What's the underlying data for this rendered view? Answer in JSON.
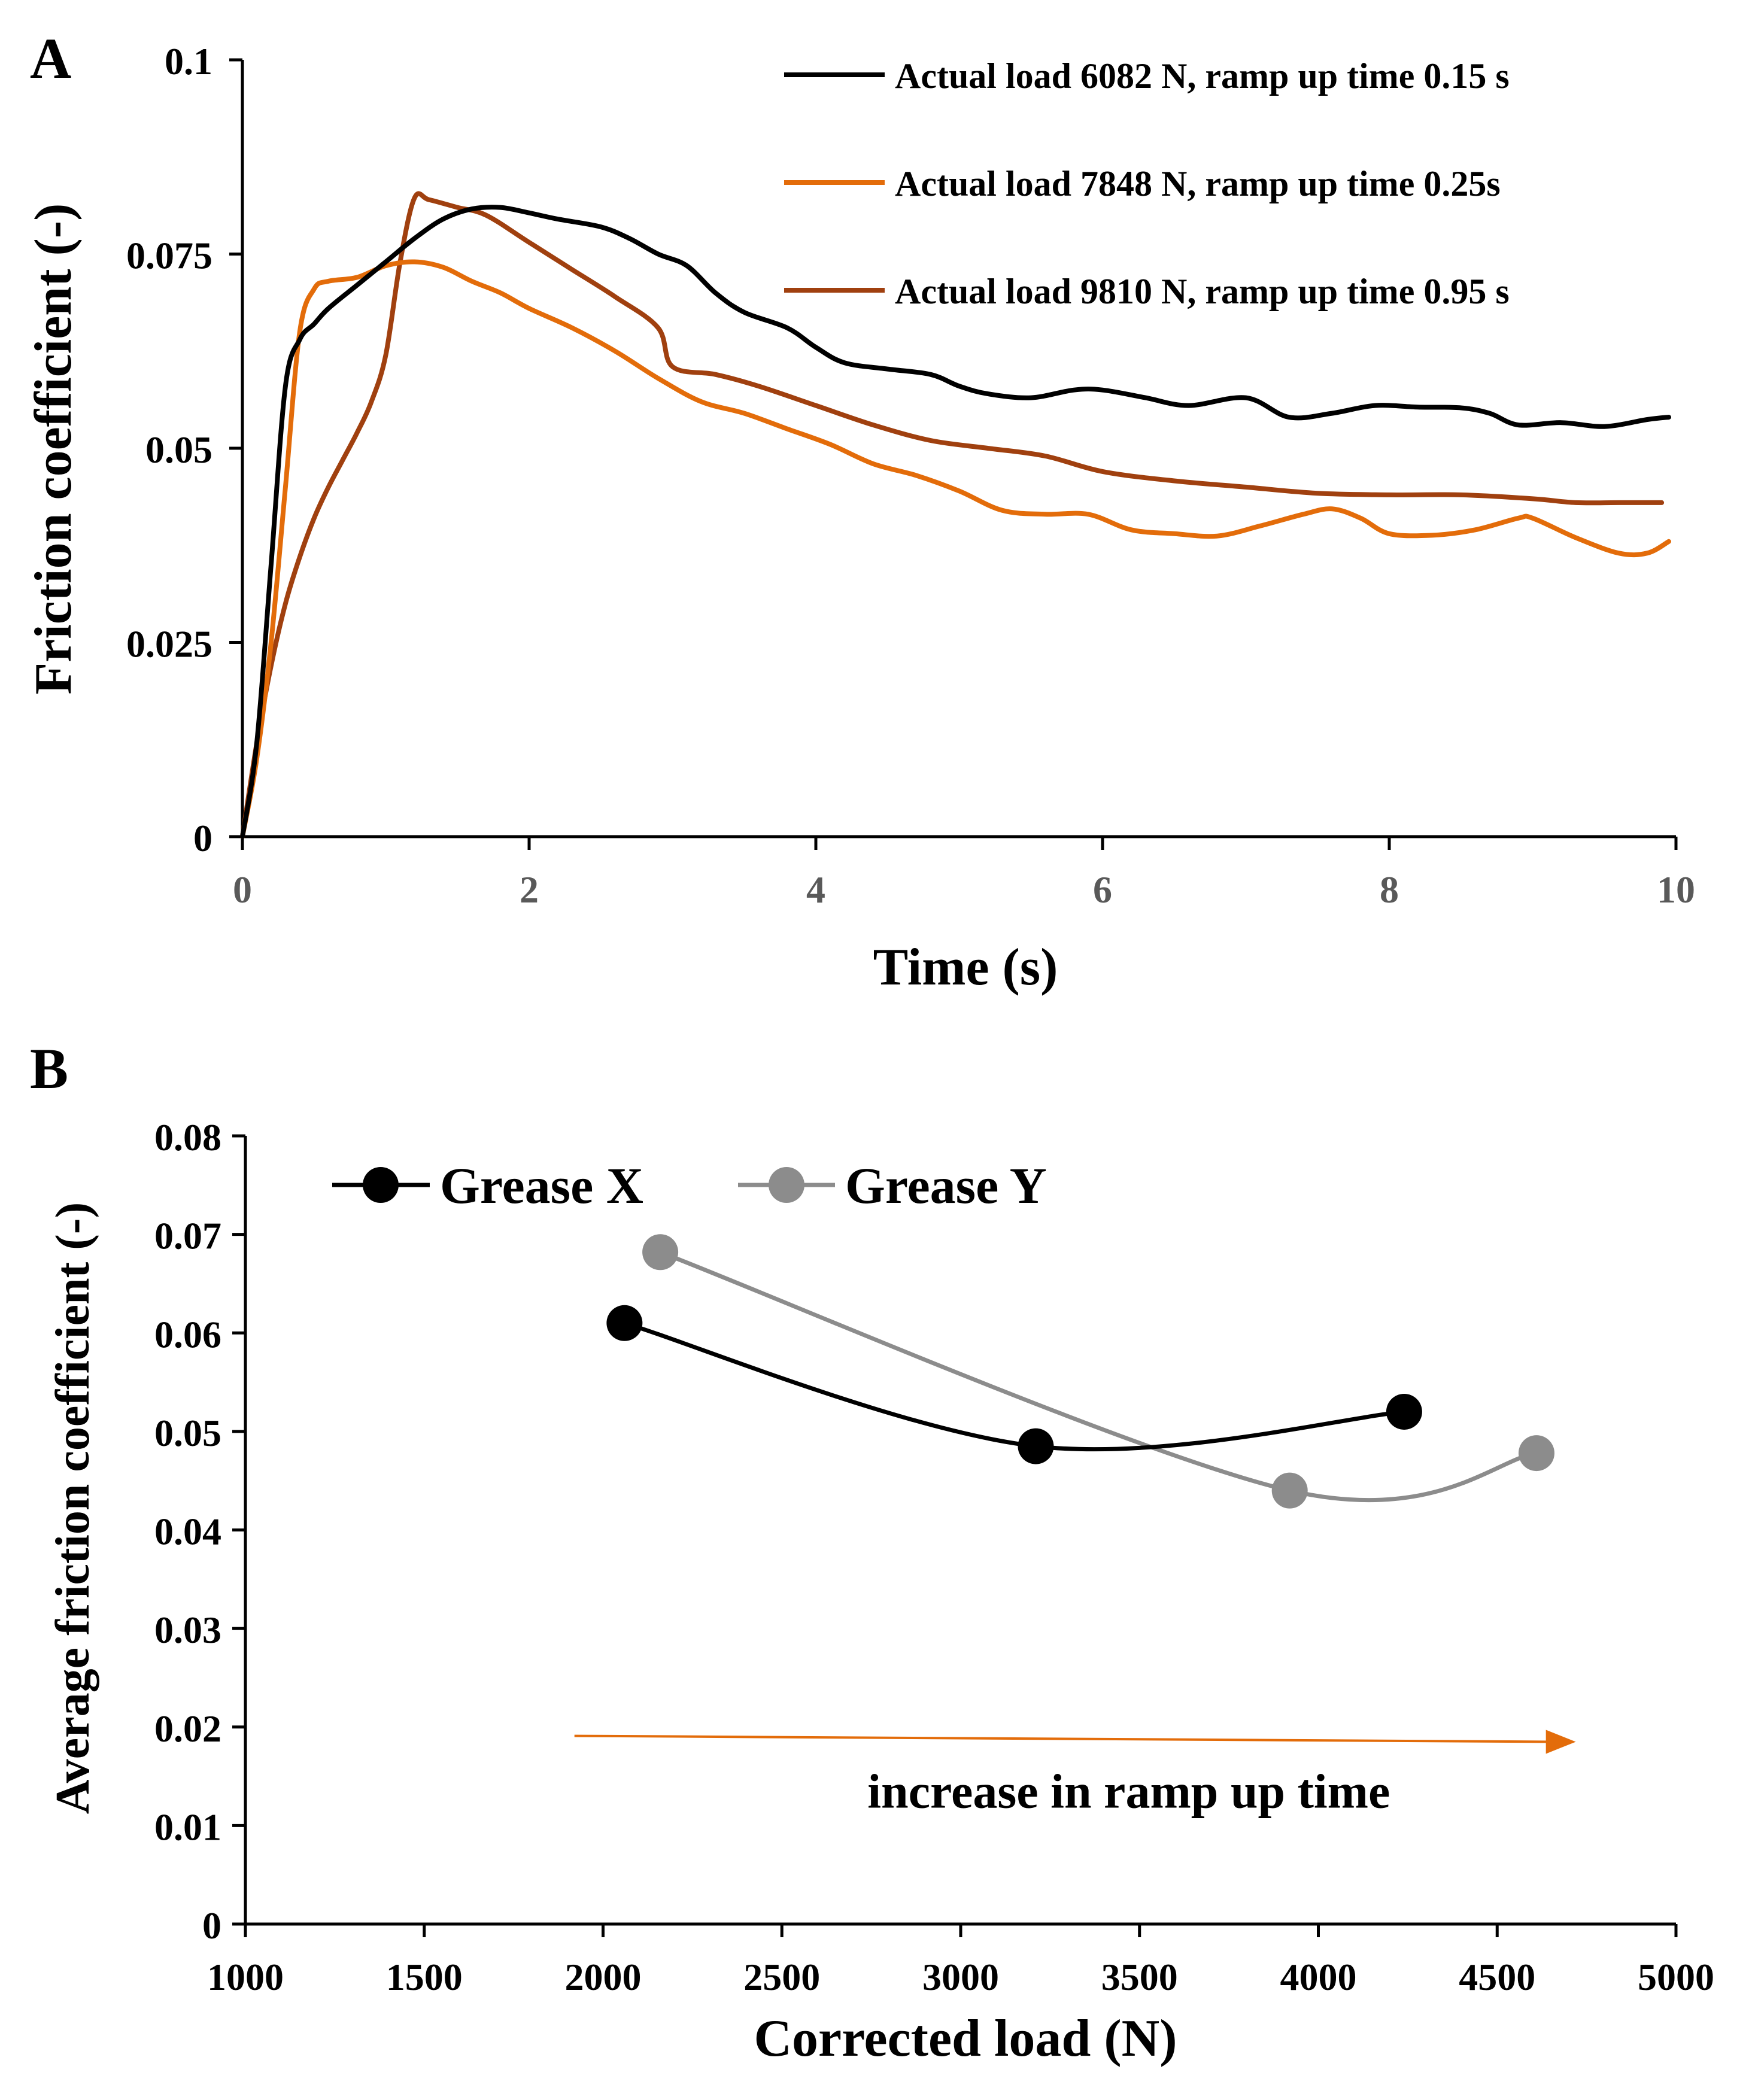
{
  "colors": {
    "axis": "#000000",
    "black_series": "#000000",
    "orange_series": "#E36C0A",
    "brown_series": "#A0400F",
    "grease_x": "#000000",
    "grease_y": "#8C8C8C",
    "arrow": "#E36C0A"
  },
  "chart_data": [
    {
      "panel_label": "A",
      "type": "line",
      "xlabel": "Time (s)",
      "ylabel": "Friction coefficient (-)",
      "xlim": [
        0,
        10
      ],
      "ylim": [
        0,
        0.1
      ],
      "xticks": [
        0,
        2,
        4,
        6,
        8,
        10
      ],
      "xtick_labels": [
        "0",
        "2",
        "4",
        "6",
        "8",
        "10"
      ],
      "yticks": [
        0,
        0.025,
        0.05,
        0.075,
        0.1
      ],
      "ytick_labels": [
        "0",
        "0.025",
        "0.05",
        "0.075",
        "0.1"
      ],
      "legend_position": "top-right",
      "series": [
        {
          "name": "Actual load 6082 N, ramp up time 0.15 s",
          "color_key": "black_series",
          "points": [
            [
              0,
              0
            ],
            [
              0.1,
              0.012
            ],
            [
              0.2,
              0.035
            ],
            [
              0.3,
              0.058
            ],
            [
              0.4,
              0.064
            ],
            [
              0.5,
              0.066
            ],
            [
              0.6,
              0.068
            ],
            [
              0.8,
              0.071
            ],
            [
              1.0,
              0.074
            ],
            [
              1.2,
              0.077
            ],
            [
              1.4,
              0.0795
            ],
            [
              1.6,
              0.0808
            ],
            [
              1.8,
              0.081
            ],
            [
              2.0,
              0.0803
            ],
            [
              2.2,
              0.0795
            ],
            [
              2.5,
              0.0785
            ],
            [
              2.7,
              0.077
            ],
            [
              2.9,
              0.075
            ],
            [
              3.1,
              0.0735
            ],
            [
              3.3,
              0.07
            ],
            [
              3.5,
              0.0675
            ],
            [
              3.8,
              0.0655
            ],
            [
              4.0,
              0.063
            ],
            [
              4.2,
              0.061
            ],
            [
              4.5,
              0.0602
            ],
            [
              4.8,
              0.0595
            ],
            [
              5.0,
              0.058
            ],
            [
              5.2,
              0.057
            ],
            [
              5.5,
              0.0565
            ],
            [
              5.8,
              0.0575
            ],
            [
              6.0,
              0.0575
            ],
            [
              6.3,
              0.0565
            ],
            [
              6.6,
              0.0555
            ],
            [
              7.0,
              0.0565
            ],
            [
              7.3,
              0.054
            ],
            [
              7.6,
              0.0545
            ],
            [
              7.9,
              0.0555
            ],
            [
              8.2,
              0.0553
            ],
            [
              8.5,
              0.0552
            ],
            [
              8.7,
              0.0545
            ],
            [
              8.9,
              0.053
            ],
            [
              9.2,
              0.0533
            ],
            [
              9.5,
              0.0528
            ],
            [
              9.8,
              0.0537
            ],
            [
              9.95,
              0.054
            ]
          ]
        },
        {
          "name": "Actual load 7848 N, ramp up time 0.25s",
          "color_key": "orange_series",
          "points": [
            [
              0,
              0
            ],
            [
              0.1,
              0.01
            ],
            [
              0.2,
              0.025
            ],
            [
              0.3,
              0.045
            ],
            [
              0.4,
              0.065
            ],
            [
              0.5,
              0.0705
            ],
            [
              0.6,
              0.0715
            ],
            [
              0.8,
              0.072
            ],
            [
              1.0,
              0.0735
            ],
            [
              1.2,
              0.074
            ],
            [
              1.4,
              0.0733
            ],
            [
              1.6,
              0.0715
            ],
            [
              1.8,
              0.07
            ],
            [
              2.0,
              0.068
            ],
            [
              2.3,
              0.0655
            ],
            [
              2.6,
              0.0625
            ],
            [
              2.9,
              0.059
            ],
            [
              3.2,
              0.056
            ],
            [
              3.5,
              0.0545
            ],
            [
              3.8,
              0.0525
            ],
            [
              4.1,
              0.0505
            ],
            [
              4.4,
              0.048
            ],
            [
              4.7,
              0.0465
            ],
            [
              5.0,
              0.0445
            ],
            [
              5.3,
              0.042
            ],
            [
              5.6,
              0.0415
            ],
            [
              5.9,
              0.0415
            ],
            [
              6.2,
              0.0395
            ],
            [
              6.5,
              0.039
            ],
            [
              6.8,
              0.0387
            ],
            [
              7.1,
              0.04
            ],
            [
              7.4,
              0.0415
            ],
            [
              7.6,
              0.0422
            ],
            [
              7.8,
              0.041
            ],
            [
              8.0,
              0.039
            ],
            [
              8.3,
              0.0388
            ],
            [
              8.6,
              0.0395
            ],
            [
              8.9,
              0.041
            ],
            [
              9.0,
              0.041
            ],
            [
              9.3,
              0.0385
            ],
            [
              9.6,
              0.0365
            ],
            [
              9.8,
              0.0365
            ],
            [
              9.95,
              0.038
            ]
          ]
        },
        {
          "name": "Actual load 9810 N, ramp up time 0.95 s",
          "color_key": "brown_series",
          "points": [
            [
              0,
              0
            ],
            [
              0.1,
              0.012
            ],
            [
              0.2,
              0.022
            ],
            [
              0.3,
              0.03
            ],
            [
              0.4,
              0.036
            ],
            [
              0.5,
              0.041
            ],
            [
              0.6,
              0.045
            ],
            [
              0.7,
              0.0485
            ],
            [
              0.8,
              0.052
            ],
            [
              0.9,
              0.056
            ],
            [
              1.0,
              0.062
            ],
            [
              1.1,
              0.074
            ],
            [
              1.2,
              0.0822
            ],
            [
              1.3,
              0.082
            ],
            [
              1.5,
              0.081
            ],
            [
              1.7,
              0.08
            ],
            [
              2.0,
              0.0765
            ],
            [
              2.3,
              0.073
            ],
            [
              2.6,
              0.0695
            ],
            [
              2.9,
              0.0655
            ],
            [
              3.0,
              0.0605
            ],
            [
              3.3,
              0.0595
            ],
            [
              3.6,
              0.058
            ],
            [
              4.0,
              0.0555
            ],
            [
              4.4,
              0.053
            ],
            [
              4.8,
              0.051
            ],
            [
              5.2,
              0.05
            ],
            [
              5.6,
              0.049
            ],
            [
              6.0,
              0.047
            ],
            [
              6.5,
              0.0458
            ],
            [
              7.0,
              0.045
            ],
            [
              7.5,
              0.0442
            ],
            [
              8.0,
              0.044
            ],
            [
              8.5,
              0.044
            ],
            [
              9.0,
              0.0435
            ],
            [
              9.3,
              0.043
            ],
            [
              9.6,
              0.043
            ],
            [
              9.9,
              0.043
            ]
          ]
        }
      ]
    },
    {
      "panel_label": "B",
      "type": "line",
      "xlabel": "Corrected load (N)",
      "ylabel": "Average friction coefficient (-)",
      "xlim": [
        1000,
        5000
      ],
      "ylim": [
        0,
        0.08
      ],
      "xticks": [
        1000,
        1500,
        2000,
        2500,
        3000,
        3500,
        4000,
        4500,
        5000
      ],
      "xtick_labels": [
        "1000",
        "1500",
        "2000",
        "2500",
        "3000",
        "3500",
        "4000",
        "4500",
        "5000"
      ],
      "yticks": [
        0,
        0.01,
        0.02,
        0.03,
        0.04,
        0.05,
        0.06,
        0.07,
        0.08
      ],
      "ytick_labels": [
        "0",
        "0.01",
        "0.02",
        "0.03",
        "0.04",
        "0.05",
        "0.06",
        "0.07",
        "0.08"
      ],
      "legend_position": "top-left",
      "series": [
        {
          "name": "Grease X",
          "color_key": "grease_x",
          "x": [
            2060,
            3210,
            4240
          ],
          "y": [
            0.061,
            0.0485,
            0.052
          ]
        },
        {
          "name": "Grease Y",
          "color_key": "grease_y",
          "x": [
            2160,
            3920,
            4610
          ],
          "y": [
            0.0682,
            0.044,
            0.0478
          ]
        }
      ],
      "annotation": {
        "text": "increase in ramp up time",
        "arrow_from": [
          1920,
          0.0191
        ],
        "arrow_to": [
          4720,
          0.0185
        ]
      }
    }
  ]
}
